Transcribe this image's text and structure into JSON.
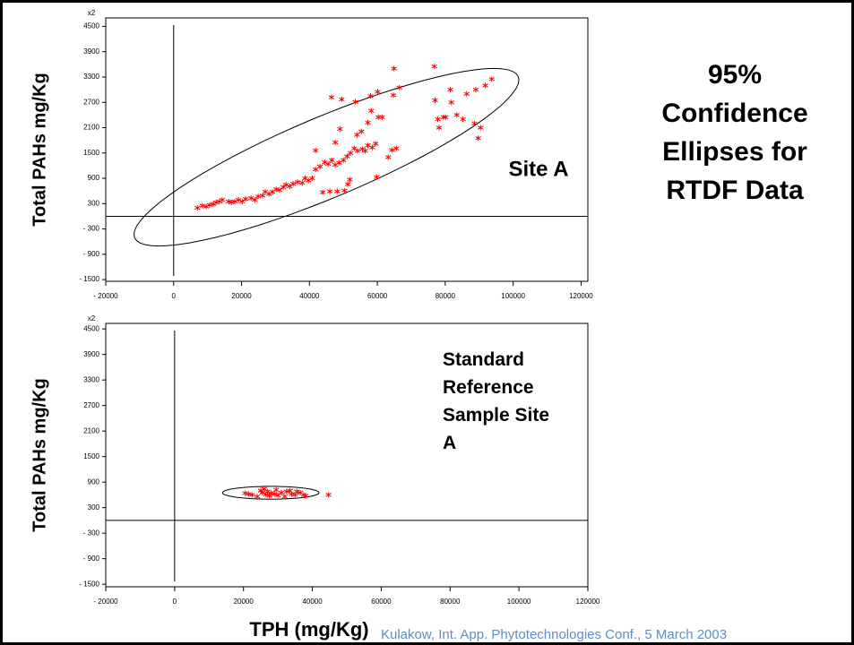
{
  "slide_title": "95% Confidence Ellipses for RTDF Data",
  "source": "Kulakow, Int. App. Phytotechnologies Conf., 5 March 2003",
  "chart_data": [
    {
      "type": "scatter",
      "y_label": "Total PAHs mg/Kg",
      "y_multiplier": "x2",
      "annotation": "Site A",
      "color": "#ff0000",
      "xlim": [
        -20000,
        122000
      ],
      "ylim": [
        -1540,
        4700
      ],
      "xticks": [
        {
          "value": -20000,
          "label": "- 20000"
        },
        0,
        20000,
        40000,
        60000,
        80000,
        100000,
        120000
      ],
      "yticks": [
        {
          "value": -1500,
          "label": "- 1500"
        },
        {
          "value": -900,
          "label": "- 900"
        },
        {
          "value": -300,
          "label": "- 300"
        },
        300,
        900,
        1500,
        2100,
        2700,
        3300,
        3900,
        4500
      ],
      "zero_lines": true,
      "ellipse": {
        "center": [
          45000,
          1400
        ],
        "axis1": [
          56500,
          1910
        ],
        "axis2": [
          -4650,
          880
        ]
      },
      "x": [
        7000,
        8500,
        9600,
        10600,
        11700,
        12500,
        13500,
        14300,
        16200,
        17000,
        18000,
        19100,
        20200,
        21200,
        22800,
        23900,
        24900,
        26200,
        27000,
        28100,
        29100,
        30200,
        31200,
        32300,
        33100,
        34200,
        35200,
        36500,
        37900,
        38700,
        39700,
        40800,
        41800,
        43100,
        44500,
        45500,
        46600,
        47600,
        48700,
        50000,
        51100,
        52100,
        53200,
        54200,
        55600,
        56400,
        57200,
        58500,
        59500,
        63200,
        64300,
        65600,
        43900,
        46000,
        48200,
        50300,
        51300,
        51900,
        41800,
        54000,
        55300,
        57200,
        58200,
        60300,
        61400,
        49500,
        47600,
        49000,
        53500,
        59800,
        46500,
        58000,
        60100,
        64900,
        64700,
        66500,
        76800,
        77000,
        77800,
        78200,
        79500,
        80100,
        81500,
        81800,
        83400,
        85200,
        86300,
        88600,
        89000,
        89700,
        90400,
        91800,
        93700
      ],
      "values": [
        200,
        250,
        230,
        270,
        290,
        330,
        350,
        390,
        350,
        330,
        350,
        390,
        350,
        410,
        430,
        390,
        470,
        490,
        580,
        530,
        580,
        640,
        620,
        690,
        750,
        710,
        770,
        810,
        790,
        900,
        850,
        900,
        1110,
        1180,
        1280,
        1240,
        1330,
        1220,
        1270,
        1330,
        1420,
        1500,
        1610,
        1550,
        1590,
        1550,
        1680,
        1630,
        1720,
        1400,
        1570,
        1610,
        570,
        590,
        590,
        610,
        760,
        870,
        1560,
        1930,
        2010,
        2220,
        2500,
        2350,
        2350,
        2770,
        1750,
        2070,
        2710,
        930,
        2820,
        2850,
        2950,
        3500,
        2870,
        3050,
        3550,
        2750,
        2300,
        2100,
        2350,
        2350,
        3000,
        2700,
        2400,
        2300,
        2900,
        2200,
        3000,
        1850,
        2100,
        3100,
        3250
      ]
    },
    {
      "type": "scatter",
      "y_label": "Total PAHs mg/Kg",
      "y_multiplier": "x2",
      "annotation": "Standard Reference Sample Site A",
      "x_label": "TPH (mg/Kg)",
      "color": "#ff0000",
      "xlim": [
        -20000,
        120000
      ],
      "ylim": [
        -1560,
        4630
      ],
      "xticks": [
        {
          "value": -20000,
          "label": "- 20000"
        },
        0,
        20000,
        40000,
        60000,
        80000,
        100000,
        120000
      ],
      "yticks": [
        {
          "value": -1500,
          "label": "- 1500"
        },
        {
          "value": -900,
          "label": "- 900"
        },
        {
          "value": -300,
          "label": "- 300"
        },
        300,
        900,
        1500,
        2100,
        2700,
        3300,
        3900,
        4500
      ],
      "zero_lines": true,
      "ellipse": {
        "center": [
          27900,
          650
        ],
        "axis1": [
          14000,
          0
        ],
        "axis2": [
          0,
          150
        ]
      },
      "x": [
        20500,
        21500,
        22500,
        24000,
        25000,
        25500,
        26000,
        26500,
        27000,
        27500,
        28000,
        29000,
        29500,
        30000,
        31000,
        32000,
        32500,
        33500,
        34000,
        35000,
        35500,
        36500,
        37500,
        38000,
        44700
      ],
      "values": [
        640,
        620,
        600,
        560,
        700,
        650,
        740,
        610,
        680,
        580,
        640,
        620,
        720,
        590,
        650,
        560,
        680,
        700,
        620,
        600,
        680,
        650,
        600,
        580,
        600
      ]
    }
  ]
}
